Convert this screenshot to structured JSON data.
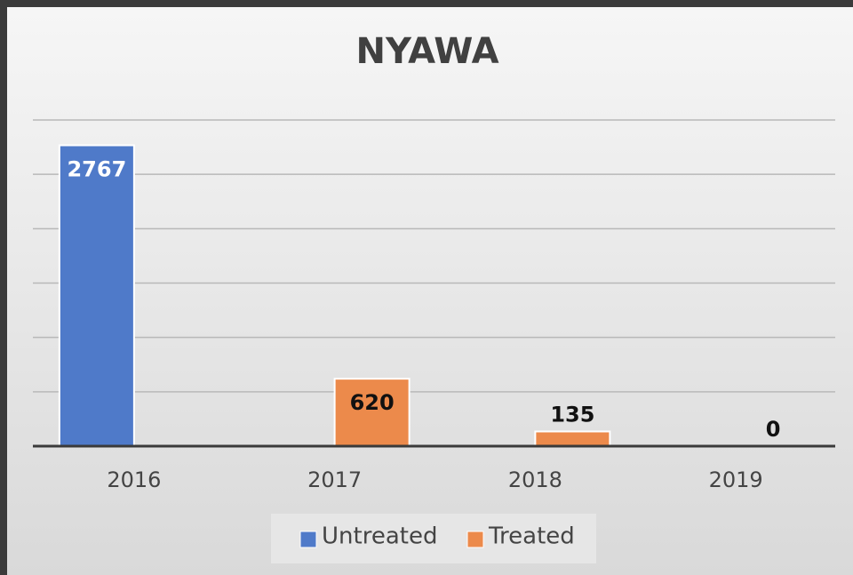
{
  "chart_data": {
    "type": "bar",
    "title": "NYAWA",
    "categories": [
      "2016",
      "2017",
      "2018",
      "2019"
    ],
    "series": [
      {
        "name": "Untreated",
        "color": "#4f7ac9",
        "values": [
          2767,
          null,
          null,
          null
        ]
      },
      {
        "name": "Treated",
        "color": "#ec8a4b",
        "values": [
          null,
          620,
          135,
          0
        ]
      }
    ],
    "ylim": [
      0,
      3000
    ],
    "yticks": [
      0,
      500,
      1000,
      1500,
      2000,
      2500,
      3000
    ],
    "grid": true,
    "legend": "bottom"
  }
}
